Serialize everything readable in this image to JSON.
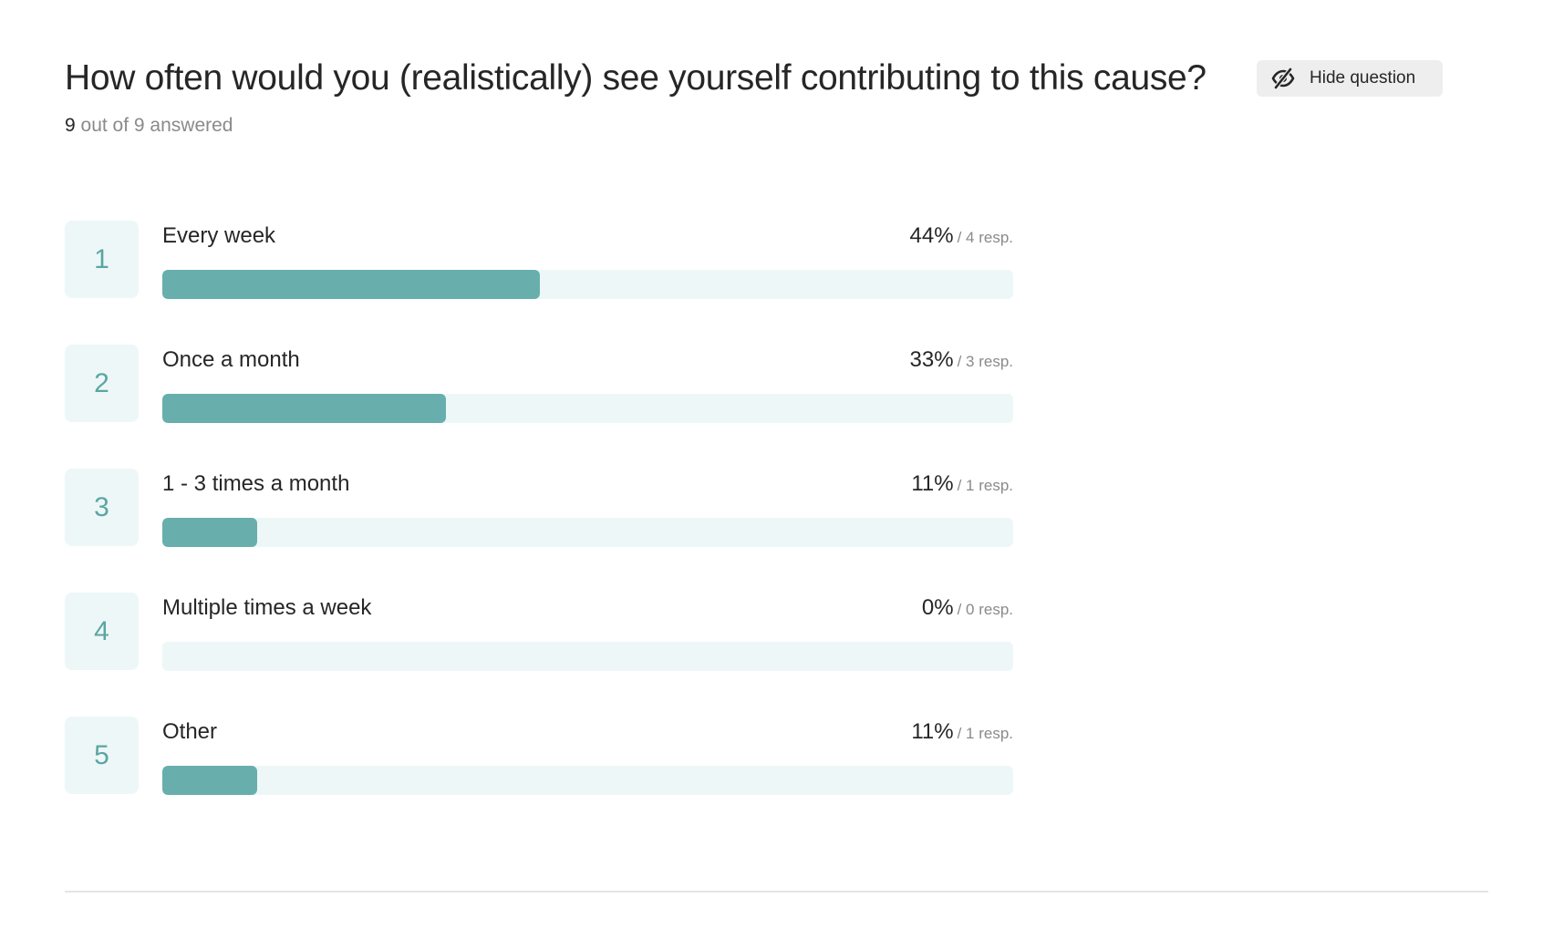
{
  "question": {
    "title": "How often would you (realistically) see yourself contributing to this cause?",
    "answered_count": "9",
    "answered_rest": "out of 9 answered"
  },
  "hide_button": {
    "label": "Hide question",
    "icon": "eye-slash-icon"
  },
  "colors": {
    "accent": "#68aeac",
    "number": "#5aa6a3",
    "track": "#eef7f7",
    "button_bg": "#eeeeee"
  },
  "options": [
    {
      "number": "1",
      "label": "Every week",
      "percent": "44%",
      "responses": "/ 4 resp.",
      "fill": 0.444
    },
    {
      "number": "2",
      "label": "Once a month",
      "percent": "33%",
      "responses": "/ 3 resp.",
      "fill": 0.333
    },
    {
      "number": "3",
      "label": "1 - 3 times a month",
      "percent": "11%",
      "responses": "/ 1 resp.",
      "fill": 0.111
    },
    {
      "number": "4",
      "label": "Multiple times a week",
      "percent": "0%",
      "responses": "/ 0 resp.",
      "fill": 0
    },
    {
      "number": "5",
      "label": "Other",
      "percent": "11%",
      "responses": "/ 1 resp.",
      "fill": 0.111
    }
  ]
}
